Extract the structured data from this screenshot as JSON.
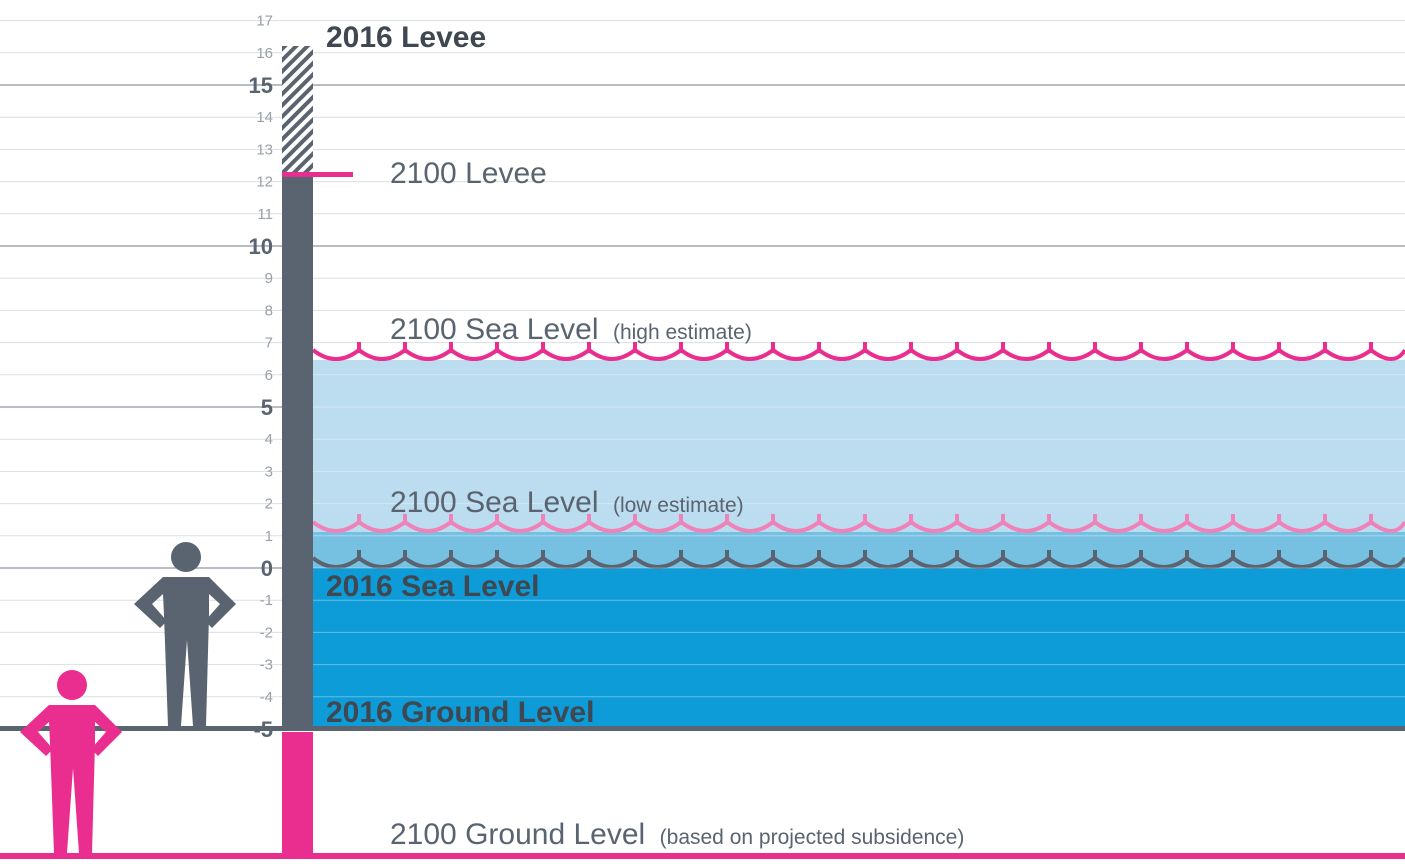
{
  "scale": {
    "ticks": [
      "17",
      "16",
      "15",
      "14",
      "13",
      "12",
      "11",
      "10",
      "9",
      "8",
      "7",
      "6",
      "5",
      "4",
      "3",
      "2",
      "1",
      "0",
      "-1",
      "-2",
      "-3",
      "-4",
      "-5"
    ],
    "major_ticks": [
      "15",
      "10",
      "5",
      "0",
      "-5"
    ]
  },
  "labels": {
    "levee_2016": "2016 Levee",
    "levee_2100": "2100 Levee",
    "sea_high_main": "2100 Sea Level",
    "sea_high_note": "(high estimate)",
    "sea_low_main": "2100 Sea Level",
    "sea_low_note": "(low estimate)",
    "sea_2016": "2016 Sea Level",
    "ground_2016": "2016 Ground Level",
    "ground_2100_main": "2100 Ground Level",
    "ground_2100_note": "(based on projected subsidence)"
  },
  "levels": {
    "levee_2016": 16,
    "levee_2100": 12,
    "sea_high_2100": 6.5,
    "sea_low_2100": 1,
    "sea_2016": 0,
    "ground_2016": -5
  },
  "figures": {
    "person_2016": "person-icon",
    "person_2100": "person-icon"
  },
  "colors": {
    "slate": "#5a6470",
    "pink": "#ea2e8f",
    "pink_light": "#ef82b9",
    "water_high": "#bcdcef",
    "water_low": "#76c0e2",
    "water_2016": "#0e9cd8",
    "grid": "#dcdfe3",
    "tick": "#9aa0a6"
  }
}
